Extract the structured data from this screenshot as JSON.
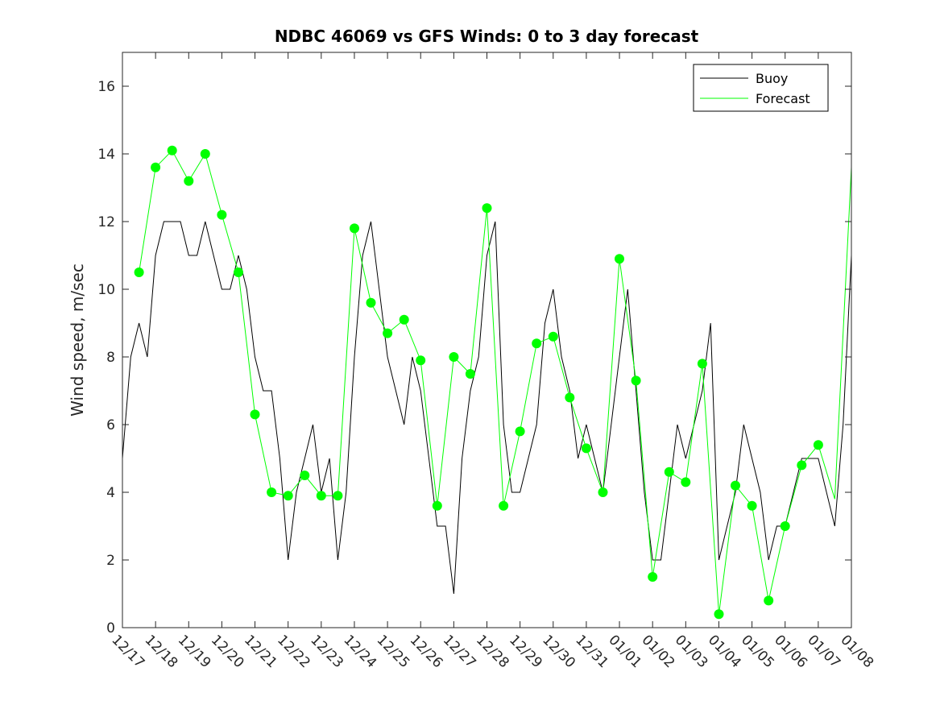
{
  "chart_data": {
    "type": "line",
    "title": "NDBC 46069 vs GFS Winds: 0 to 3 day forecast",
    "xlabel": "",
    "ylabel": "Wind speed, m/sec",
    "xlim": [
      "12/17",
      "01/08"
    ],
    "ylim": [
      0,
      17
    ],
    "x_tick_labels": [
      "12/17",
      "12/18",
      "12/19",
      "12/20",
      "12/21",
      "12/22",
      "12/23",
      "12/24",
      "12/25",
      "12/26",
      "12/27",
      "12/28",
      "12/29",
      "12/30",
      "12/31",
      "01/01",
      "01/02",
      "01/03",
      "01/04",
      "01/05",
      "01/06",
      "01/07",
      "01/08"
    ],
    "y_ticks": [
      0,
      2,
      4,
      6,
      8,
      10,
      12,
      14,
      16
    ],
    "grid": false,
    "legend": {
      "placement": "top-right",
      "entries": [
        "Buoy",
        "Forecast"
      ]
    },
    "colors": {
      "buoy": "#000000",
      "forecast": "#00ff00",
      "axes": "#262626"
    },
    "series": [
      {
        "name": "Buoy",
        "x": [
          "12/17 00:00",
          "12/17 06:00",
          "12/17 12:00",
          "12/17 18:00",
          "12/18 00:00",
          "12/18 06:00",
          "12/18 12:00",
          "12/18 18:00",
          "12/19 00:00",
          "12/19 06:00",
          "12/19 12:00",
          "12/19 18:00",
          "12/20 00:00",
          "12/20 06:00",
          "12/20 12:00",
          "12/20 18:00",
          "12/21 00:00",
          "12/21 06:00",
          "12/21 12:00",
          "12/21 18:00",
          "12/22 00:00",
          "12/22 06:00",
          "12/22 12:00",
          "12/22 18:00",
          "12/23 00:00",
          "12/23 06:00",
          "12/23 12:00",
          "12/23 18:00",
          "12/24 00:00",
          "12/24 06:00",
          "12/24 12:00",
          "12/24 18:00",
          "12/25 00:00",
          "12/25 06:00",
          "12/25 12:00",
          "12/25 18:00",
          "12/26 00:00",
          "12/26 06:00",
          "12/26 12:00",
          "12/26 18:00",
          "12/27 00:00",
          "12/27 06:00",
          "12/27 12:00",
          "12/27 18:00",
          "12/28 00:00",
          "12/28 06:00",
          "12/28 12:00",
          "12/28 18:00",
          "12/29 00:00",
          "12/29 06:00",
          "12/29 12:00",
          "12/29 18:00",
          "12/30 00:00",
          "12/30 06:00",
          "12/30 12:00",
          "12/30 18:00",
          "12/31 00:00",
          "12/31 06:00",
          "12/31 12:00",
          "12/31 18:00",
          "01/01 00:00",
          "01/01 06:00",
          "01/01 12:00",
          "01/01 18:00",
          "01/02 00:00",
          "01/02 06:00",
          "01/02 12:00",
          "01/02 18:00",
          "01/03 00:00",
          "01/03 06:00",
          "01/03 12:00",
          "01/03 18:00",
          "01/04 00:00",
          "01/04 06:00",
          "01/04 12:00",
          "01/04 18:00",
          "01/05 00:00",
          "01/05 06:00",
          "01/05 12:00",
          "01/05 18:00",
          "01/06 00:00",
          "01/06 06:00",
          "01/06 12:00",
          "01/06 18:00",
          "01/07 00:00",
          "01/07 06:00",
          "01/07 12:00",
          "01/07 18:00",
          "01/08 00:00"
        ],
        "values": [
          5,
          8,
          9,
          8,
          11,
          12,
          12,
          12,
          11,
          11,
          12,
          11,
          10,
          10,
          11,
          10,
          8,
          7,
          7,
          5,
          2,
          4,
          5,
          6,
          4,
          5,
          2,
          4,
          8,
          11,
          12,
          10,
          8,
          7,
          6,
          8,
          7,
          5,
          3,
          3,
          1,
          5,
          7,
          8,
          11,
          12,
          6,
          4,
          4,
          5,
          6,
          9,
          10,
          8,
          7,
          5,
          6,
          5,
          4,
          6,
          8,
          10,
          7,
          4,
          2,
          2,
          4,
          6,
          5,
          6,
          7,
          9,
          2,
          3,
          4,
          6,
          5,
          4,
          2,
          3,
          3,
          4,
          5,
          5,
          5,
          4,
          3,
          6,
          11
        ]
      },
      {
        "name": "Forecast",
        "x": [
          "12/17 12:00",
          "12/18 00:00",
          "12/18 12:00",
          "12/19 00:00",
          "12/19 12:00",
          "12/20 00:00",
          "12/20 12:00",
          "12/21 00:00",
          "12/21 12:00",
          "12/22 00:00",
          "12/22 12:00",
          "12/23 00:00",
          "12/23 12:00",
          "12/24 00:00",
          "12/24 12:00",
          "12/25 00:00",
          "12/25 12:00",
          "12/26 00:00",
          "12/26 12:00",
          "12/27 00:00",
          "12/27 12:00",
          "12/28 00:00",
          "12/28 12:00",
          "12/29 00:00",
          "12/29 12:00",
          "12/30 00:00",
          "12/30 12:00",
          "12/31 00:00",
          "12/31 12:00",
          "01/01 00:00",
          "01/01 12:00",
          "01/02 00:00",
          "01/02 12:00",
          "01/03 00:00",
          "01/03 12:00",
          "01/04 00:00",
          "01/04 12:00",
          "01/05 00:00",
          "01/05 12:00",
          "01/06 00:00",
          "01/06 12:00",
          "01/07 00:00",
          "01/07 12:00",
          "01/08 00:00"
        ],
        "values": [
          10.5,
          13.6,
          14.1,
          13.2,
          14.0,
          12.2,
          10.5,
          6.3,
          4.0,
          3.9,
          4.5,
          3.9,
          3.9,
          11.8,
          9.6,
          8.7,
          9.1,
          7.9,
          3.6,
          8.0,
          7.5,
          12.4,
          3.6,
          5.8,
          8.4,
          8.6,
          6.8,
          5.3,
          4.0,
          10.9,
          7.3,
          1.5,
          4.6,
          4.3,
          7.8,
          0.4,
          4.2,
          3.6,
          0.8,
          3.0,
          4.8,
          5.4,
          3.8,
          13.6
        ]
      }
    ],
    "markers": {
      "x": [
        "12/17 12:00",
        "12/18 00:00",
        "12/18 12:00",
        "12/19 00:00",
        "12/19 12:00",
        "12/20 00:00",
        "12/20 12:00",
        "12/21 00:00",
        "12/21 12:00",
        "12/22 00:00",
        "12/22 12:00",
        "12/23 00:00",
        "12/23 12:00",
        "12/24 00:00",
        "12/24 12:00",
        "12/25 00:00",
        "12/25 12:00",
        "12/26 00:00",
        "12/26 12:00",
        "12/27 00:00",
        "12/27 12:00",
        "12/28 00:00",
        "12/28 12:00",
        "12/29 00:00",
        "12/29 12:00",
        "12/30 00:00",
        "12/30 12:00",
        "12/31 00:00",
        "12/31 12:00",
        "01/01 00:00",
        "01/01 12:00",
        "01/02 00:00",
        "01/02 12:00",
        "01/03 00:00",
        "01/03 12:00",
        "01/04 00:00",
        "01/04 12:00",
        "01/05 00:00",
        "01/05 12:00",
        "01/06 00:00",
        "01/06 12:00",
        "01/07 00:00"
      ],
      "values": [
        10.5,
        13.6,
        14.1,
        13.2,
        14.0,
        12.2,
        10.5,
        6.3,
        4.0,
        3.9,
        4.5,
        3.9,
        3.9,
        11.8,
        9.6,
        8.7,
        9.1,
        7.9,
        3.6,
        8.0,
        7.5,
        12.4,
        3.6,
        5.8,
        8.4,
        8.6,
        6.8,
        5.3,
        4.0,
        10.9,
        7.3,
        1.5,
        4.6,
        4.3,
        7.8,
        0.4,
        4.2,
        3.6,
        0.8,
        3.0,
        4.8,
        5.4
      ]
    }
  }
}
